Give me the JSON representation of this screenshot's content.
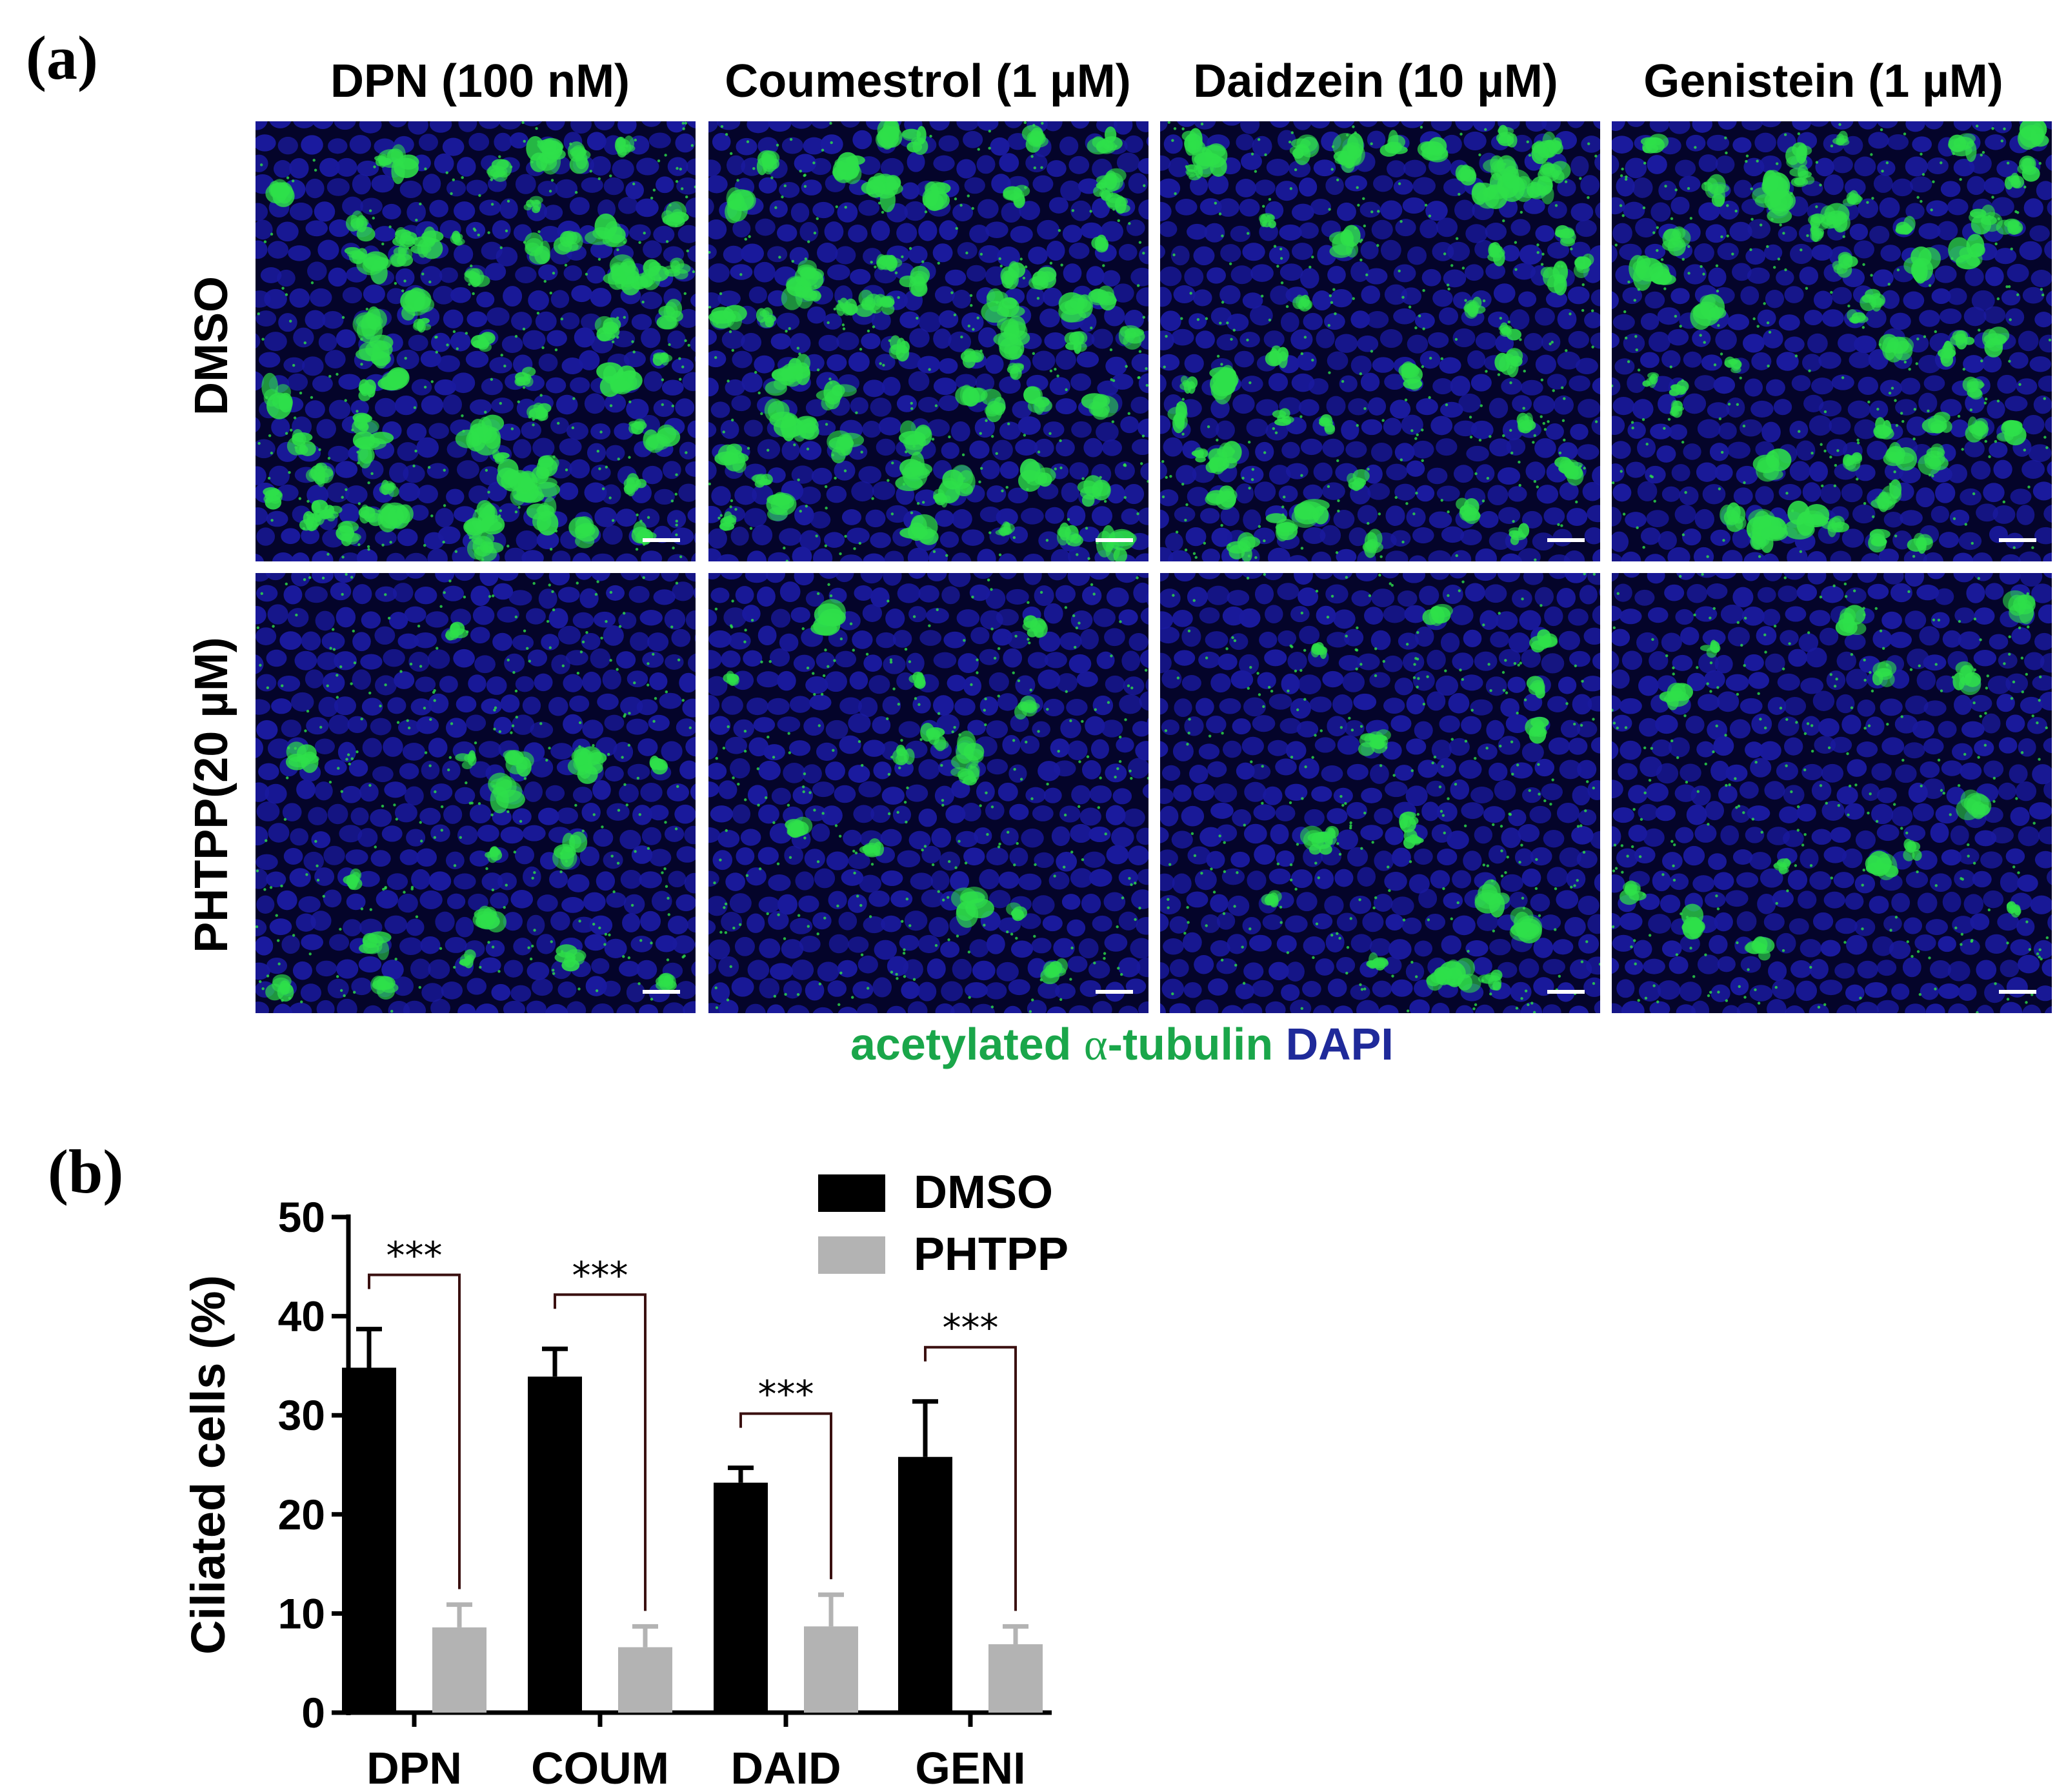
{
  "panel_a": {
    "label": "(a)",
    "column_headers": [
      "DPN (100 nM)",
      "Coumestrol (1 µM)",
      "Daidzein (10 µM)",
      "Genistein (1 µM)"
    ],
    "row_headers": [
      "DMSO",
      "PHTPP(20 µM)"
    ],
    "stain_legend": {
      "green_text": "acetylated ",
      "alpha": "α",
      "green_suffix": "-tubulin",
      "blue_text": " DAPI"
    },
    "colors": {
      "nuclei": "#1a1a9e",
      "cilia": "#2ee04a",
      "background": "#04042a",
      "stain_green": "#1aa64a",
      "stain_blue": "#1f2a9a",
      "scale_bar": "#ffffff"
    },
    "relative_ciliated_density": [
      [
        1.0,
        0.9,
        0.7,
        0.75
      ],
      [
        0.25,
        0.2,
        0.25,
        0.2
      ]
    ]
  },
  "panel_b": {
    "label": "(b)"
  },
  "chart_data": {
    "type": "bar",
    "categories": [
      "DPN",
      "COUM",
      "DAID",
      "GENI"
    ],
    "series": [
      {
        "name": "DMSO",
        "values": [
          34.8,
          33.9,
          23.2,
          25.8
        ],
        "errors": [
          3.9,
          2.8,
          1.5,
          5.6
        ],
        "color": "#000000"
      },
      {
        "name": "PHTPP",
        "values": [
          8.6,
          6.6,
          8.7,
          6.9
        ],
        "errors": [
          2.3,
          2.1,
          3.2,
          1.8
        ],
        "color": "#b3b3b3"
      }
    ],
    "ylabel": "Ciliated cells (%)",
    "xlabel": "",
    "ylim": [
      0,
      50
    ],
    "yticks": [
      0,
      10,
      20,
      30,
      40,
      50
    ],
    "significance": [
      "***",
      "***",
      "***",
      "***"
    ],
    "legend_position": "top-right",
    "grid": false
  }
}
